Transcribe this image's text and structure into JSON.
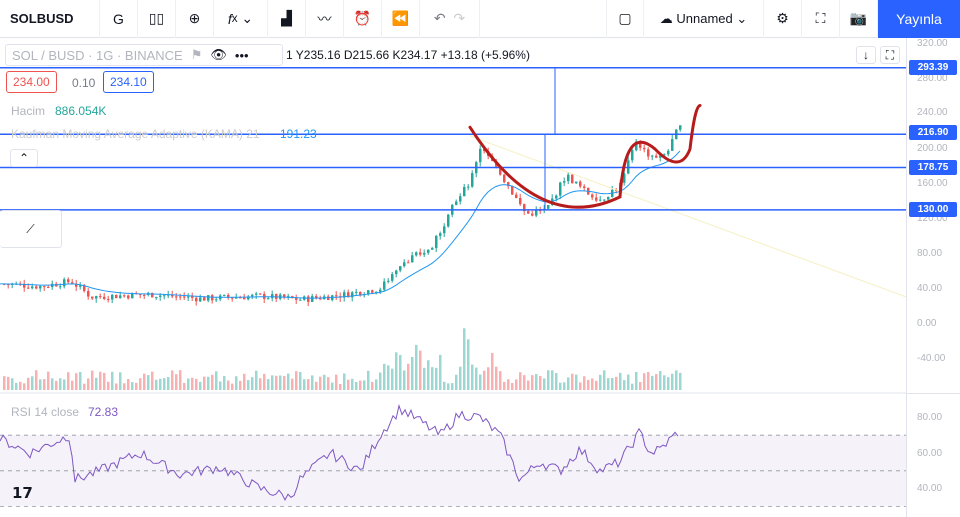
{
  "toolbar": {
    "symbol": "SOLBUSD",
    "interval": "G",
    "chart_name": "Unnamed",
    "publish": "Yayınla"
  },
  "legend": {
    "title": "SOL / BUSD · 1G · BINANCE",
    "ohlc": "1  Y235.16  D215.66  K234.17  +13.18 (+5.96%)",
    "bid": "234.00",
    "spread": "0.10",
    "ask": "234.10",
    "volume_label": "Hacim",
    "volume_value": "886.054K",
    "kama_label": "Kaufman Moving Average Adaptive (KAMA) 21",
    "kama_value": "191.23",
    "rsi_label": "RSI 14 close",
    "rsi_value": "72.83"
  },
  "axis": {
    "ticks": [
      "320.00",
      "280.00",
      "240.00",
      "200.00",
      "160.00",
      "120.00",
      "80.00",
      "40.00",
      "0.00",
      "-40.00"
    ],
    "rsi_ticks": [
      "80.00",
      "60.00",
      "40.00"
    ],
    "tags": [
      "293.39",
      "216.90",
      "178.75",
      "130.00"
    ]
  },
  "colors": {
    "accent": "#2962ff",
    "up": "#26a69a",
    "down": "#ef5350",
    "drawing": "#b71c1c",
    "rsi": "#7e57c2"
  },
  "chart_data": {
    "type": "line",
    "title": "SOL / BUSD · 1G · BINANCE",
    "price": {
      "x": [
        0,
        40,
        70,
        90,
        150,
        200,
        260,
        300,
        340,
        380,
        400,
        430,
        450,
        470,
        480,
        500,
        525,
        545,
        565,
        585,
        600,
        620,
        635,
        645,
        660,
        670,
        680
      ],
      "y": [
        45,
        42,
        48,
        30,
        33,
        28,
        31,
        27,
        32,
        40,
        70,
        85,
        130,
        165,
        200,
        170,
        125,
        130,
        170,
        150,
        142,
        160,
        210,
        195,
        190,
        205,
        234
      ]
    },
    "hlines": [
      293.39,
      216.9,
      178.75,
      130
    ],
    "rsi": {
      "x": [
        0,
        30,
        70,
        75,
        100,
        140,
        180,
        220,
        260,
        290,
        300,
        330,
        360,
        380,
        400,
        420,
        440,
        460,
        480,
        500,
        520,
        540,
        560,
        580,
        600,
        620,
        640,
        650,
        660,
        680
      ],
      "y": [
        68,
        60,
        70,
        45,
        50,
        60,
        48,
        52,
        40,
        35,
        45,
        60,
        50,
        70,
        85,
        78,
        70,
        82,
        80,
        70,
        45,
        55,
        50,
        62,
        50,
        55,
        72,
        60,
        62,
        73
      ]
    }
  }
}
